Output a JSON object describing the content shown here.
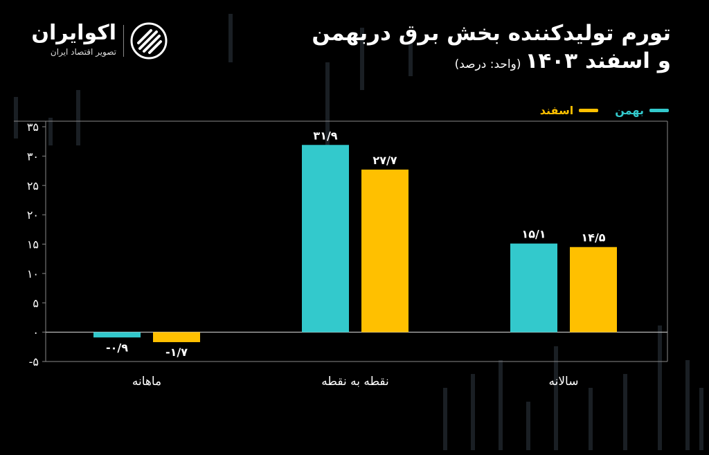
{
  "title": {
    "line1": "تورم تولیدکننده بخش برق دربهمن",
    "line2": "و اسفند ۱۴۰۳",
    "unit": "(واحد: درصد)"
  },
  "logo": {
    "name": "اکوایران",
    "tagline": "تصویر اقتصاد ایران"
  },
  "colors": {
    "bahman": "#33c9cc",
    "esfand": "#ffc000",
    "axis": "#8a8a8a",
    "text": "#ffffff"
  },
  "chart_data": {
    "type": "bar",
    "categories": [
      "ماهانه",
      "نقطه به نقطه",
      "سالانه"
    ],
    "series": [
      {
        "name": "بهمن",
        "values": [
          -0.9,
          31.9,
          15.1
        ],
        "labels": [
          "-۰/۹",
          "۳۱/۹",
          "۱۵/۱"
        ]
      },
      {
        "name": "اسفند",
        "values": [
          -1.7,
          27.7,
          14.5
        ],
        "labels": [
          "-۱/۷",
          "۲۷/۷",
          "۱۴/۵"
        ]
      }
    ],
    "yticks": [
      "۳۵",
      "۳۰",
      "۲۵",
      "۲۰",
      "۱۵",
      "۱۰",
      "۵",
      "۰",
      "-۵"
    ],
    "ytick_values": [
      35,
      30,
      25,
      20,
      15,
      10,
      5,
      0,
      -5
    ],
    "ylim": [
      -5,
      35
    ],
    "legend_position": "top-right",
    "grid": false
  }
}
